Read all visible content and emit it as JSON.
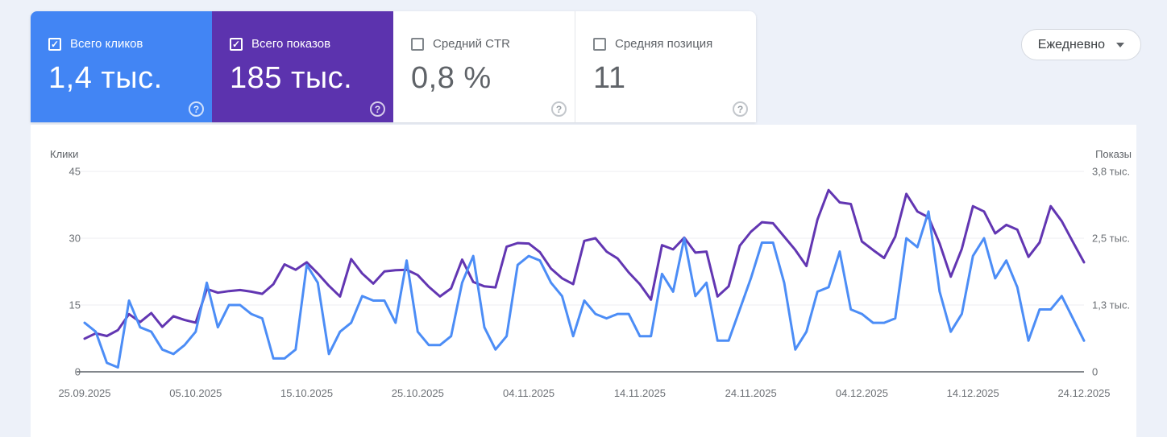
{
  "cards": [
    {
      "label": "Всего кликов",
      "value": "1,4 тыс.",
      "checked": true,
      "color": "#4285f4"
    },
    {
      "label": "Всего показов",
      "value": "185 тыс.",
      "checked": true,
      "color": "#5c33ae"
    },
    {
      "label": "Средний CTR",
      "value": "0,8 %",
      "checked": false,
      "color": "#ffffff"
    },
    {
      "label": "Средняя позиция",
      "value": "11",
      "checked": false,
      "color": "#ffffff"
    }
  ],
  "period_dropdown": {
    "label": "Ежедневно"
  },
  "icons": {
    "check": "✓",
    "help": "?"
  },
  "chart_data": {
    "type": "line",
    "title": "",
    "grid": true,
    "legend_position": "none",
    "left_axis": {
      "label": "Клики",
      "max": 45,
      "ticks": [
        0,
        15,
        30,
        45
      ],
      "tick_labels": [
        "0",
        "15",
        "30",
        "45"
      ]
    },
    "right_axis": {
      "label": "Показы",
      "max": 3750,
      "ticks": [
        0,
        1250,
        2500,
        3750
      ],
      "tick_labels": [
        "0",
        "1,3 тыс.",
        "2,5 тыс.",
        "3,8 тыс."
      ]
    },
    "x_tick_every": 10,
    "x_tick_labels": [
      "25.09.2025",
      "05.10.2025",
      "15.10.2025",
      "25.10.2025",
      "04.11.2025",
      "14.11.2025",
      "24.11.2025",
      "04.12.2025",
      "14.12.2025",
      "24.12.2025"
    ],
    "dates": [
      "25.09.2025",
      "26.09.2025",
      "27.09.2025",
      "28.09.2025",
      "29.09.2025",
      "30.09.2025",
      "01.10.2025",
      "02.10.2025",
      "03.10.2025",
      "04.10.2025",
      "05.10.2025",
      "06.10.2025",
      "07.10.2025",
      "08.10.2025",
      "09.10.2025",
      "10.10.2025",
      "11.10.2025",
      "12.10.2025",
      "13.10.2025",
      "14.10.2025",
      "15.10.2025",
      "16.10.2025",
      "17.10.2025",
      "18.10.2025",
      "19.10.2025",
      "20.10.2025",
      "21.10.2025",
      "22.10.2025",
      "23.10.2025",
      "24.10.2025",
      "25.10.2025",
      "26.10.2025",
      "27.10.2025",
      "28.10.2025",
      "29.10.2025",
      "30.10.2025",
      "31.10.2025",
      "01.11.2025",
      "02.11.2025",
      "03.11.2025",
      "04.11.2025",
      "05.11.2025",
      "06.11.2025",
      "07.11.2025",
      "08.11.2025",
      "09.11.2025",
      "10.11.2025",
      "11.11.2025",
      "12.11.2025",
      "13.11.2025",
      "14.11.2025",
      "15.11.2025",
      "16.11.2025",
      "17.11.2025",
      "18.11.2025",
      "19.11.2025",
      "20.11.2025",
      "21.11.2025",
      "22.11.2025",
      "23.11.2025",
      "24.11.2025",
      "25.11.2025",
      "26.11.2025",
      "27.11.2025",
      "28.11.2025",
      "29.11.2025",
      "30.11.2025",
      "01.12.2025",
      "02.12.2025",
      "03.12.2025",
      "04.12.2025",
      "05.12.2025",
      "06.12.2025",
      "07.12.2025",
      "08.12.2025",
      "09.12.2025",
      "10.12.2025",
      "11.12.2025",
      "12.12.2025",
      "13.12.2025",
      "14.12.2025",
      "15.12.2025",
      "16.12.2025",
      "17.12.2025",
      "18.12.2025",
      "19.12.2025",
      "20.12.2025",
      "21.12.2025",
      "22.12.2025",
      "23.12.2025",
      "24.12.2025"
    ],
    "series": [
      {
        "name": "Всего показов",
        "axis": "right",
        "color": "#6236b2",
        "values": [
          620,
          720,
          670,
          780,
          1080,
          930,
          1100,
          840,
          1040,
          970,
          920,
          1550,
          1480,
          1510,
          1530,
          1500,
          1460,
          1640,
          2010,
          1910,
          2050,
          1840,
          1610,
          1410,
          2110,
          1840,
          1650,
          1880,
          1900,
          1910,
          1810,
          1590,
          1410,
          1560,
          2100,
          1680,
          1600,
          1580,
          2340,
          2410,
          2400,
          2240,
          1930,
          1750,
          1640,
          2450,
          2500,
          2250,
          2120,
          1860,
          1640,
          1350,
          2370,
          2290,
          2510,
          2230,
          2250,
          1410,
          1600,
          2360,
          2620,
          2800,
          2780,
          2530,
          2280,
          1980,
          2850,
          3400,
          3170,
          3140,
          2440,
          2280,
          2130,
          2530,
          3330,
          3000,
          2890,
          2400,
          1780,
          2300,
          3100,
          3000,
          2590,
          2750,
          2660,
          2150,
          2420,
          3100,
          2820,
          2430,
          2050
        ]
      },
      {
        "name": "Всего кликов",
        "axis": "left",
        "color": "#4c8df6",
        "values": [
          11,
          9,
          2,
          1,
          16,
          10,
          9,
          5,
          4,
          6,
          9,
          20,
          10,
          15,
          15,
          13,
          12,
          3,
          3,
          5,
          24,
          20,
          4,
          9,
          11,
          17,
          16,
          16,
          11,
          25,
          9,
          6,
          6,
          8,
          20,
          26,
          10,
          5,
          8,
          24,
          26,
          25,
          20,
          17,
          8,
          16,
          13,
          12,
          13,
          13,
          8,
          8,
          22,
          18,
          30,
          17,
          20,
          7,
          7,
          14,
          21,
          29,
          29,
          20,
          5,
          9,
          18,
          19,
          27,
          14,
          13,
          11,
          11,
          12,
          30,
          28,
          36,
          18,
          9,
          13,
          26,
          30,
          21,
          25,
          19,
          7,
          14,
          14,
          17,
          12,
          7
        ]
      }
    ]
  }
}
